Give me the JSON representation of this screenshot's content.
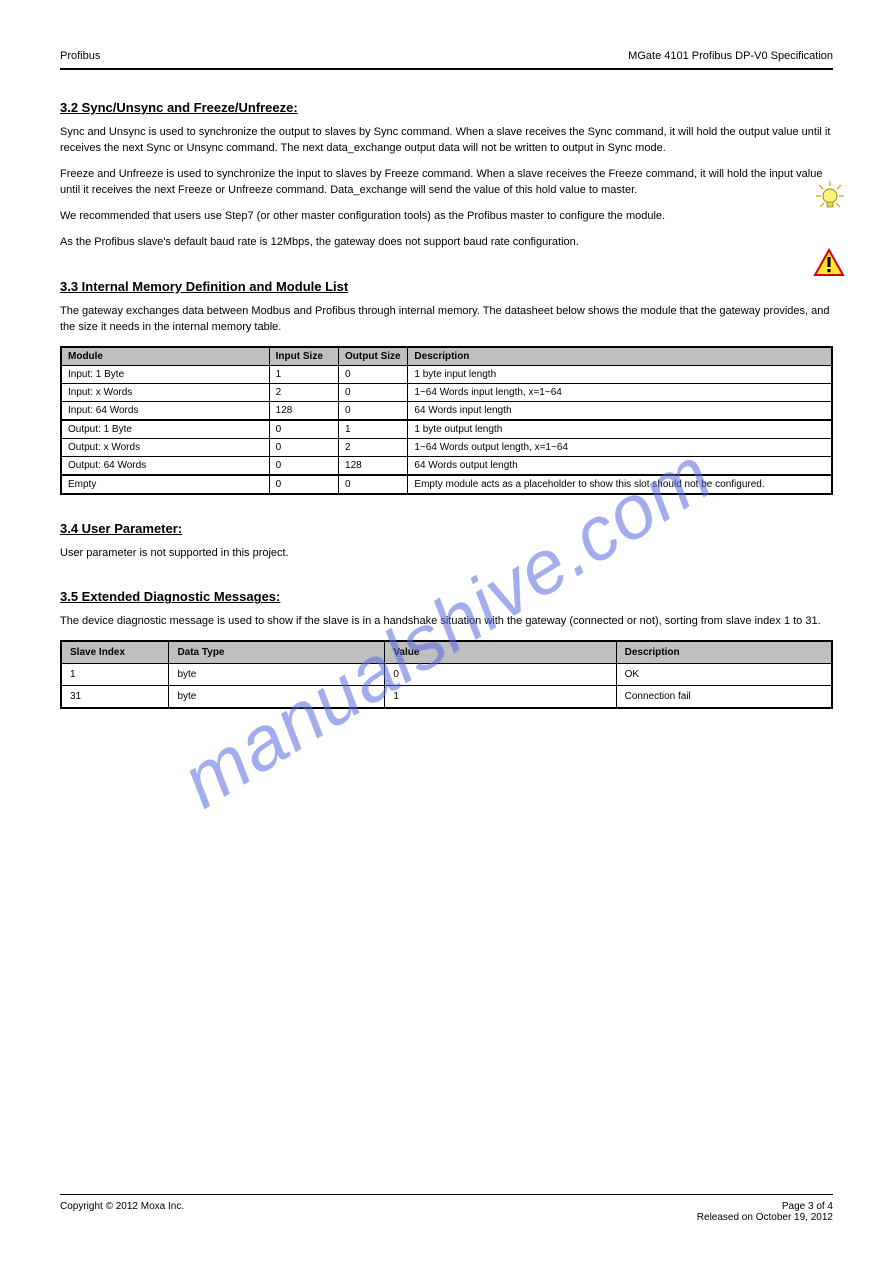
{
  "header": {
    "left": "Profibus",
    "right": "MGate 4101 Profibus DP-V0 Specification"
  },
  "sec1": {
    "title": "3.2 Sync/Unsync and Freeze/Unfreeze:",
    "p1": "Sync and Unsync is used to synchronize the output to slaves by Sync command. When a slave receives the Sync command, it will hold the output value until it receives the next Sync or Unsync command. The next data_exchange output data will not be written to output in Sync mode.",
    "p2": "Freeze and Unfreeze is used to synchronize the input to slaves by Freeze command. When a slave receives the Freeze command, it will hold the input value until it receives the next Freeze or Unfreeze command. Data_exchange will send the value of this hold value to master.",
    "tip": "We recommended that users use Step7 (or other master configuration tools) as the Profibus master to configure the module.",
    "warn": "As the Profibus slave's default baud rate is 12Mbps, the gateway does not support baud rate configuration."
  },
  "sec2": {
    "title": "3.3 Internal Memory Definition and Module List",
    "p": "The gateway exchanges data between Modbus and Profibus through internal memory. The datasheet below shows the module that the gateway provides, and the size it needs in the internal memory table.",
    "table": {
      "columns": [
        "Module",
        "Input Size",
        "Output Size",
        "Description"
      ],
      "rows": [
        [
          "Input: 1 Byte",
          "1",
          "0",
          "1 byte input length"
        ],
        [
          "Input: x Words",
          "2",
          "0",
          "1~64 Words input length, x=1~64"
        ],
        [
          "Input: 64 Words",
          "128",
          "0",
          "64 Words input length"
        ],
        [
          "Output: 1 Byte",
          "0",
          "1",
          "1 byte output length"
        ],
        [
          "Output: x Words",
          "0",
          "2",
          "1~64 Words output length, x=1~64"
        ],
        [
          "Output: 64 Words",
          "0",
          "128",
          "64 Words output length"
        ],
        [
          "Empty",
          "0",
          "0",
          "Empty module acts as a placeholder to show this slot should not be configured."
        ]
      ],
      "section_breaks": [
        2,
        5
      ]
    }
  },
  "sec3": {
    "title": "3.4 User Parameter:",
    "p": "User parameter is not supported in this project."
  },
  "sec4": {
    "title": "3.5 Extended Diagnostic Messages:",
    "p": "The device diagnostic message is used to show if the slave is in a handshake situation with the gateway (connected or not), sorting from slave index 1 to 31.",
    "table": {
      "columns": [
        "Slave Index",
        "Data Type",
        "Value",
        "Description"
      ],
      "rows": [
        [
          "1",
          "byte",
          "0",
          "OK"
        ],
        [
          "31",
          "byte",
          "1",
          "Connection fail"
        ]
      ]
    }
  },
  "footer": {
    "left": "Copyright © 2012 Moxa Inc.",
    "right": "Page 3 of 4",
    "date": "Released on October 19, 2012"
  },
  "watermark": "manualshive.com"
}
